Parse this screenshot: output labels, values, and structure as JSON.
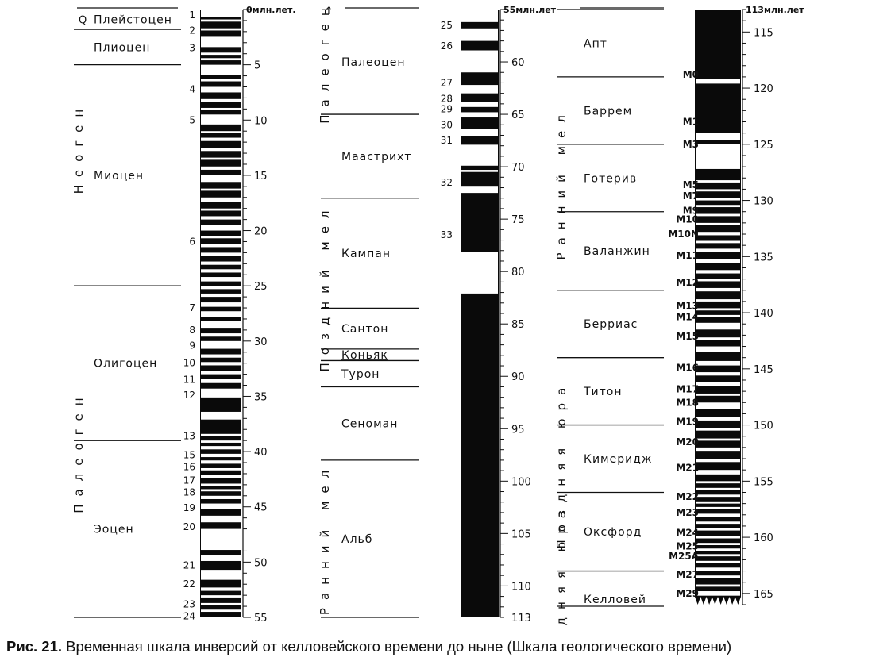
{
  "caption": {
    "label": "Рис. 21.",
    "text": "Временная шкала инверсий от келловейского времени до ныне (Шкала геологического времени)"
  },
  "columns": [
    {
      "id": "c1",
      "unit": "млн лет",
      "age_min": 0,
      "age_max": 55,
      "bottom_tick": "55",
      "first_tick": "0млн.лет.",
      "tick_labels": [
        "5",
        "10",
        "15",
        "20",
        "25",
        "30",
        "35",
        "40",
        "45",
        "50"
      ],
      "tick_values": [
        5,
        10,
        15,
        20,
        25,
        30,
        35,
        40,
        45,
        50
      ],
      "eras": [
        {
          "label": "Неоген",
          "from": 0,
          "to": 25
        },
        {
          "label": "Палеоген",
          "from": 25,
          "to": 55
        }
      ],
      "epochs": [
        {
          "label": "Q",
          "from": 0,
          "to": 1.8
        },
        {
          "label": "Плейстоцен",
          "from": 0,
          "to": 1.8
        },
        {
          "label": "Плиоцен",
          "from": 1.8,
          "to": 5
        },
        {
          "label": "Миоцен",
          "from": 5,
          "to": 25
        },
        {
          "label": "Олигоцен",
          "from": 25,
          "to": 39
        },
        {
          "label": "Эоцен",
          "from": 39,
          "to": 55
        }
      ],
      "boundaries": [
        1.8,
        5,
        25,
        39,
        55
      ],
      "anomalies": [
        {
          "label": "1",
          "age": 0.5
        },
        {
          "label": "2",
          "age": 1.9
        },
        {
          "label": "3",
          "age": 3.5
        },
        {
          "label": "4",
          "age": 7.2
        },
        {
          "label": "5",
          "age": 10
        },
        {
          "label": "6",
          "age": 21
        },
        {
          "label": "7",
          "age": 27
        },
        {
          "label": "8",
          "age": 29
        },
        {
          "label": "9",
          "age": 30.4
        },
        {
          "label": "10",
          "age": 32
        },
        {
          "label": "11",
          "age": 33.5
        },
        {
          "label": "12",
          "age": 34.9
        },
        {
          "label": "13",
          "age": 38.6
        },
        {
          "label": "15",
          "age": 40.3
        },
        {
          "label": "16",
          "age": 41.4
        },
        {
          "label": "17",
          "age": 42.6
        },
        {
          "label": "18",
          "age": 43.7
        },
        {
          "label": "19",
          "age": 45.1
        },
        {
          "label": "20",
          "age": 46.8
        },
        {
          "label": "21",
          "age": 50.3
        },
        {
          "label": "22",
          "age": 52
        },
        {
          "label": "23",
          "age": 53.8
        },
        {
          "label": "24",
          "age": 54.9
        }
      ],
      "normal_polarity": [
        [
          0,
          0.7
        ],
        [
          0.9,
          1.1
        ],
        [
          1.7,
          1.9
        ],
        [
          2.4,
          3.4
        ],
        [
          3.9,
          4.1
        ],
        [
          4.4,
          4.6
        ],
        [
          5.0,
          5.9
        ],
        [
          6.3,
          6.5
        ],
        [
          7.0,
          7.5
        ],
        [
          8.1,
          8.4
        ],
        [
          8.9,
          9.1
        ],
        [
          9.5,
          10.4
        ],
        [
          11,
          11.2
        ],
        [
          11.6,
          11.9
        ],
        [
          12.5,
          12.8
        ],
        [
          13.4,
          13.6
        ],
        [
          14.2,
          14.5
        ],
        [
          15.0,
          15.6
        ],
        [
          16.2,
          16.4
        ],
        [
          17.0,
          17.4
        ],
        [
          18.0,
          18.2
        ],
        [
          18.7,
          19.0
        ],
        [
          19.5,
          20.0
        ],
        [
          20.5,
          20.7
        ],
        [
          21.2,
          21.5
        ],
        [
          22.0,
          22.3
        ],
        [
          22.8,
          23.1
        ],
        [
          23.5,
          23.8
        ],
        [
          24.2,
          24.6
        ],
        [
          25.0,
          25.3
        ],
        [
          25.7,
          26.0
        ],
        [
          26.5,
          26.9
        ],
        [
          27.3,
          27.8
        ],
        [
          28.2,
          28.8
        ],
        [
          29.3,
          29.6
        ],
        [
          30.0,
          30.7
        ],
        [
          31.2,
          31.5
        ],
        [
          31.9,
          32.2
        ],
        [
          32.7,
          33.0
        ],
        [
          33.4,
          33.8
        ],
        [
          34.3,
          35.1
        ],
        [
          36.4,
          37.1
        ],
        [
          38.4,
          38.6
        ],
        [
          39.0,
          39.2
        ],
        [
          39.5,
          39.8
        ],
        [
          40.2,
          40.5
        ],
        [
          40.8,
          41.1
        ],
        [
          41.5,
          41.7
        ],
        [
          42.1,
          42.4
        ],
        [
          42.9,
          43.1
        ],
        [
          43.4,
          43.6
        ],
        [
          44.0,
          44.3
        ],
        [
          44.7,
          45.2
        ],
        [
          45.8,
          46.4
        ],
        [
          47.0,
          48.9
        ],
        [
          49.4,
          49.9
        ],
        [
          50.7,
          51.6
        ],
        [
          52.3,
          52.6
        ],
        [
          53.0,
          53.2
        ],
        [
          53.7,
          53.9
        ],
        [
          54.3,
          54.5
        ]
      ]
    },
    {
      "id": "c2",
      "unit": "млн.лет",
      "age_min": 55,
      "age_max": 113,
      "bottom_tick": "113",
      "first_tick": "55млн.лет",
      "tick_labels": [
        "60",
        "65",
        "70",
        "75",
        "80",
        "85",
        "90",
        "95",
        "100",
        "105",
        "110"
      ],
      "tick_values": [
        60,
        65,
        70,
        75,
        80,
        85,
        90,
        95,
        100,
        105,
        110
      ],
      "eras": [
        {
          "label": "Палеоген",
          "from": 55,
          "to": 65
        },
        {
          "label": "Поздний мел",
          "from": 65,
          "to": 98
        },
        {
          "label": "Ранний мел",
          "from": 98,
          "to": 113
        }
      ],
      "epochs": [
        {
          "label": "Палеоцен",
          "from": 55,
          "to": 65
        },
        {
          "label": "Маастрихт",
          "from": 65,
          "to": 73
        },
        {
          "label": "Кампан",
          "from": 73,
          "to": 83.5
        },
        {
          "label": "Сантон",
          "from": 83.5,
          "to": 87.4
        },
        {
          "label": "Коньяк",
          "from": 87.4,
          "to": 88.5
        },
        {
          "label": "Турон",
          "from": 88.5,
          "to": 91
        },
        {
          "label": "Сеноман",
          "from": 91,
          "to": 98
        },
        {
          "label": "Альб",
          "from": 98,
          "to": 113
        }
      ],
      "boundaries": [
        65,
        73,
        83.5,
        87.4,
        88.5,
        91,
        98,
        113
      ],
      "anomalies": [
        {
          "label": "25",
          "age": 56.5
        },
        {
          "label": "26",
          "age": 58.5
        },
        {
          "label": "27",
          "age": 62
        },
        {
          "label": "28",
          "age": 63.5
        },
        {
          "label": "29",
          "age": 64.5
        },
        {
          "label": "30",
          "age": 66
        },
        {
          "label": "31",
          "age": 67.5
        },
        {
          "label": "32",
          "age": 71.5
        },
        {
          "label": "33",
          "age": 76.5
        }
      ],
      "normal_polarity": [
        [
          55,
          56.2
        ],
        [
          56.8,
          58.0
        ],
        [
          58.9,
          61.0
        ],
        [
          62.2,
          63.0
        ],
        [
          63.8,
          64.3
        ],
        [
          64.8,
          65.3
        ],
        [
          66.4,
          67.1
        ],
        [
          67.9,
          69.9
        ],
        [
          70.3,
          70.5
        ],
        [
          71.9,
          72.5
        ],
        [
          78.1,
          82.1
        ]
      ]
    },
    {
      "id": "c3",
      "unit": "млн.лет",
      "age_min": 113,
      "age_max": 166,
      "first_tick": "113млн.лет",
      "tick_labels": [
        "115",
        "120",
        "125",
        "130",
        "135",
        "140",
        "145",
        "150",
        "155",
        "160",
        "165"
      ],
      "tick_values": [
        115,
        120,
        125,
        130,
        135,
        140,
        145,
        150,
        155,
        160,
        165
      ],
      "eras": [
        {
          "label": "Ранний мел",
          "from": 113,
          "to": 144
        },
        {
          "label": "Поздняя юра",
          "from": 144,
          "to": 163
        },
        {
          "label": "Средняя юра",
          "from": 163,
          "to": 170
        }
      ],
      "epochs": [
        {
          "label": "Апт",
          "from": 113,
          "to": 119
        },
        {
          "label": "Баррем",
          "from": 119,
          "to": 125
        },
        {
          "label": "Готерив",
          "from": 125,
          "to": 131
        },
        {
          "label": "Валанжин",
          "from": 131,
          "to": 138
        },
        {
          "label": "Берриас",
          "from": 138,
          "to": 144
        },
        {
          "label": "Титон",
          "from": 144,
          "to": 150
        },
        {
          "label": "Кимеридж",
          "from": 150,
          "to": 156
        },
        {
          "label": "Оксфорд",
          "from": 156,
          "to": 163
        },
        {
          "label": "Келловей",
          "from": 163,
          "to": 169
        }
      ],
      "boundaries": [
        113,
        119,
        125,
        131,
        138,
        144,
        150,
        156,
        163,
        169
      ],
      "anomalies": [
        {
          "label": "M0",
          "age": 118.8
        },
        {
          "label": "M1",
          "age": 123
        },
        {
          "label": "M3",
          "age": 125
        },
        {
          "label": "M5",
          "age": 128.6
        },
        {
          "label": "M7",
          "age": 129.6
        },
        {
          "label": "M9",
          "age": 130.9
        },
        {
          "label": "M10",
          "age": 131.7
        },
        {
          "label": "M10N",
          "age": 133
        },
        {
          "label": "M11",
          "age": 134.9
        },
        {
          "label": "M12",
          "age": 137.3
        },
        {
          "label": "M13",
          "age": 139.4
        },
        {
          "label": "M14",
          "age": 140.4
        },
        {
          "label": "M15",
          "age": 142.1
        },
        {
          "label": "M16",
          "age": 144.9
        },
        {
          "label": "M17",
          "age": 146.8
        },
        {
          "label": "M18",
          "age": 148
        },
        {
          "label": "M19",
          "age": 149.7
        },
        {
          "label": "M20",
          "age": 151.5
        },
        {
          "label": "M21",
          "age": 153.8
        },
        {
          "label": "M22",
          "age": 156.4
        },
        {
          "label": "M23",
          "age": 157.8
        },
        {
          "label": "M24",
          "age": 159.6
        },
        {
          "label": "M25",
          "age": 160.8
        },
        {
          "label": "M25A",
          "age": 161.7
        },
        {
          "label": "M27",
          "age": 163.3
        },
        {
          "label": "M29",
          "age": 165
        }
      ],
      "normal_polarity": [
        [
          119.2,
          119.6
        ],
        [
          124.0,
          124.6
        ],
        [
          125.0,
          127.2
        ],
        [
          128.2,
          128.4
        ],
        [
          129.0,
          129.2
        ],
        [
          129.8,
          130.0
        ],
        [
          130.4,
          130.6
        ],
        [
          131.2,
          131.4
        ],
        [
          132.0,
          132.2
        ],
        [
          132.8,
          133.1
        ],
        [
          133.6,
          133.8
        ],
        [
          134.3,
          134.6
        ],
        [
          135.2,
          135.6
        ],
        [
          136.2,
          136.5
        ],
        [
          137.0,
          137.2
        ],
        [
          137.8,
          138.1
        ],
        [
          138.8,
          139.0
        ],
        [
          139.6,
          139.8
        ],
        [
          140.2,
          140.4
        ],
        [
          140.9,
          141.5
        ],
        [
          142.2,
          142.4
        ],
        [
          143.0,
          143.5
        ],
        [
          144.3,
          144.7
        ],
        [
          145.3,
          145.6
        ],
        [
          146.2,
          146.5
        ],
        [
          147.2,
          147.4
        ],
        [
          148.0,
          148.6
        ],
        [
          149.3,
          149.6
        ],
        [
          150.3,
          150.5
        ],
        [
          151.2,
          151.4
        ],
        [
          152.0,
          152.3
        ],
        [
          153.0,
          153.3
        ],
        [
          154.0,
          154.4
        ],
        [
          155.0,
          155.2
        ],
        [
          155.6,
          155.8
        ],
        [
          156.2,
          156.4
        ],
        [
          156.8,
          157.0
        ],
        [
          157.3,
          157.5
        ],
        [
          157.9,
          158.2
        ],
        [
          158.6,
          158.8
        ],
        [
          159.2,
          159.4
        ],
        [
          159.9,
          160.1
        ],
        [
          160.5,
          160.7
        ],
        [
          161.0,
          161.2
        ],
        [
          161.5,
          161.7
        ],
        [
          162.1,
          162.3
        ],
        [
          162.7,
          163.0
        ],
        [
          163.4,
          163.6
        ],
        [
          164.2,
          164.4
        ],
        [
          164.8,
          165.2
        ]
      ]
    }
  ],
  "colors": {
    "reversed_polarity": "#0a0a0a",
    "normal_polarity": "#ffffff",
    "ink": "#111111"
  }
}
